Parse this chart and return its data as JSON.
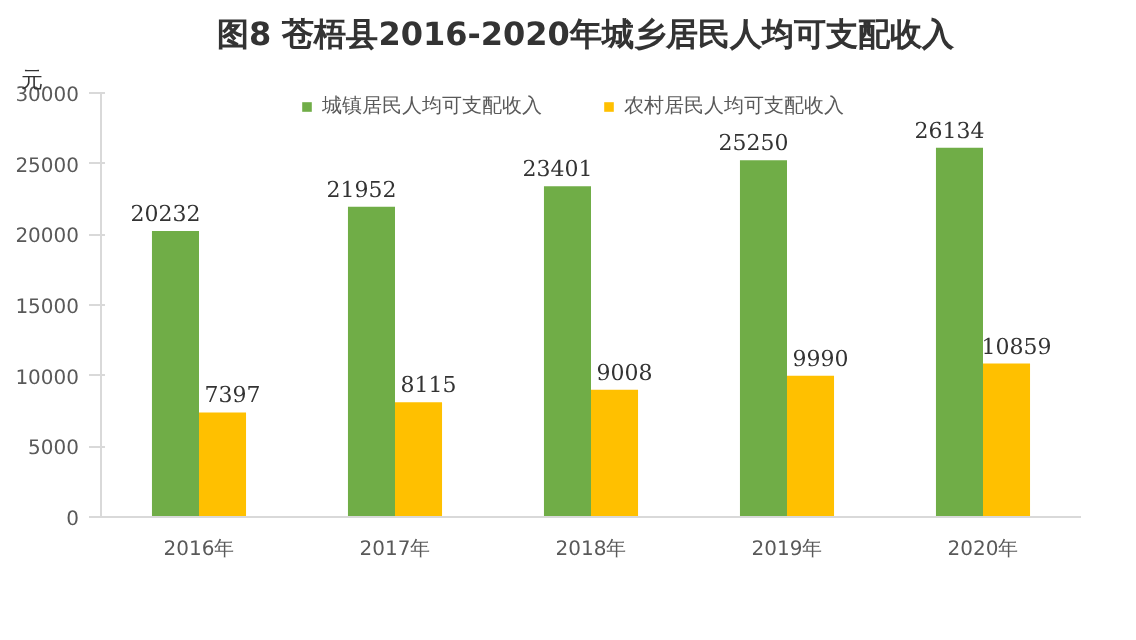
{
  "chart_data": {
    "type": "bar",
    "title": "图8  苍梧县2016-2020年城乡居民人均可支配收入",
    "ylabel": "元",
    "categories": [
      "2016年",
      "2017年",
      "2018年",
      "2019年",
      "2020年"
    ],
    "series": [
      {
        "name": "城镇居民人均可支配收入",
        "color": "#70ad47",
        "values": [
          20232,
          21952,
          23401,
          25250,
          26134
        ]
      },
      {
        "name": "农村居民人均可支配收入",
        "color": "#ffc000",
        "values": [
          7397,
          8115,
          9008,
          9990,
          10859
        ]
      }
    ],
    "ylim": [
      0,
      30000
    ],
    "yticks": [
      0,
      5000,
      10000,
      15000,
      20000,
      25000,
      30000
    ],
    "grid": false,
    "legend": "top",
    "data_labels": true
  }
}
